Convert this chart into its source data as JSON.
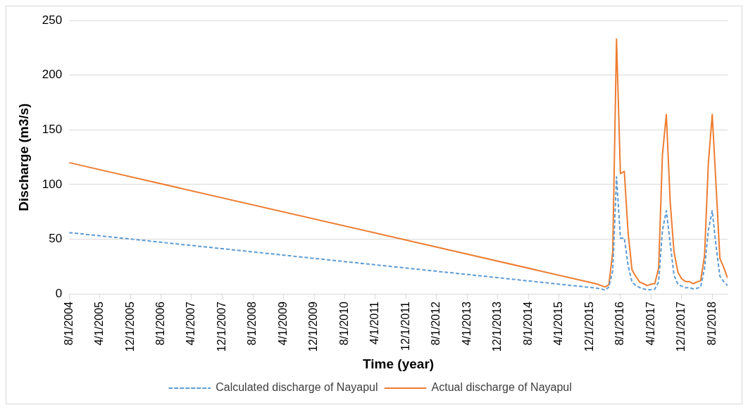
{
  "chart_data": {
    "type": "line",
    "xlabel": "Time (year)",
    "ylabel": "Discharge (m3/s)",
    "xlim": [
      "2004-08",
      "2018-12"
    ],
    "xticks": [
      {
        "value": "2004-08",
        "label": "8/1/2004"
      },
      {
        "value": "2005-04",
        "label": "4/1/2005"
      },
      {
        "value": "2005-12",
        "label": "12/1/2005"
      },
      {
        "value": "2006-08",
        "label": "8/1/2006"
      },
      {
        "value": "2007-04",
        "label": "4/1/2007"
      },
      {
        "value": "2007-12",
        "label": "12/1/2007"
      },
      {
        "value": "2008-08",
        "label": "8/1/2008"
      },
      {
        "value": "2009-04",
        "label": "4/1/2009"
      },
      {
        "value": "2009-12",
        "label": "12/1/2009"
      },
      {
        "value": "2010-08",
        "label": "8/1/2010"
      },
      {
        "value": "2011-04",
        "label": "4/1/2011"
      },
      {
        "value": "2011-12",
        "label": "12/1/2011"
      },
      {
        "value": "2012-08",
        "label": "8/1/2012"
      },
      {
        "value": "2013-04",
        "label": "4/1/2013"
      },
      {
        "value": "2013-12",
        "label": "12/1/2013"
      },
      {
        "value": "2014-08",
        "label": "8/1/2014"
      },
      {
        "value": "2015-04",
        "label": "4/1/2015"
      },
      {
        "value": "2015-12",
        "label": "12/1/2015"
      },
      {
        "value": "2016-08",
        "label": "8/1/2016"
      },
      {
        "value": "2017-04",
        "label": "4/1/2017"
      },
      {
        "value": "2017-12",
        "label": "12/1/2017"
      },
      {
        "value": "2018-08",
        "label": "8/1/2018"
      }
    ],
    "ylim": [
      0,
      250
    ],
    "yticks": [
      0,
      50,
      100,
      150,
      200,
      250
    ],
    "grid": "y",
    "legend": "bottom",
    "marker": "none",
    "x": [
      "2004-08",
      "2016-01",
      "2016-02",
      "2016-03",
      "2016-04",
      "2016-05",
      "2016-06",
      "2016-07",
      "2016-08",
      "2016-09",
      "2016-10",
      "2016-11",
      "2016-12",
      "2017-01",
      "2017-02",
      "2017-03",
      "2017-04",
      "2017-05",
      "2017-06",
      "2017-07",
      "2017-08",
      "2017-09",
      "2017-10",
      "2017-11",
      "2017-12",
      "2018-01",
      "2018-02",
      "2018-03",
      "2018-04",
      "2018-05",
      "2018-06",
      "2018-07",
      "2018-08",
      "2018-09",
      "2018-10",
      "2018-11",
      "2018-12"
    ],
    "series": [
      {
        "name": "Calculated discharge of Nayapul",
        "color": "#5b9bd5",
        "line_style": "dashed",
        "values": [
          56,
          5.5,
          5,
          4.7,
          3.2,
          6.2,
          21,
          107,
          51,
          51,
          26,
          10.7,
          7.5,
          5.7,
          4.5,
          3.7,
          3.7,
          4.2,
          11,
          58,
          76,
          46,
          17,
          8.7,
          7,
          5.5,
          5.7,
          4.5,
          5,
          6.2,
          23.6,
          58,
          76,
          43,
          16,
          11,
          7.5
        ]
      },
      {
        "name": "Actual discharge of Nayapul",
        "color": "#ed7d31",
        "line_style": "solid",
        "values": [
          120,
          9.7,
          8.7,
          7.5,
          6.2,
          8.2,
          38.5,
          233,
          110,
          112,
          56,
          22,
          16,
          10.7,
          9.2,
          7.5,
          8.7,
          9.2,
          23.6,
          127,
          164,
          83.7,
          38.5,
          19.9,
          13.7,
          11.2,
          11.2,
          9.2,
          10.7,
          12,
          35,
          119,
          164,
          98,
          32.3,
          24,
          14.4
        ]
      }
    ]
  }
}
